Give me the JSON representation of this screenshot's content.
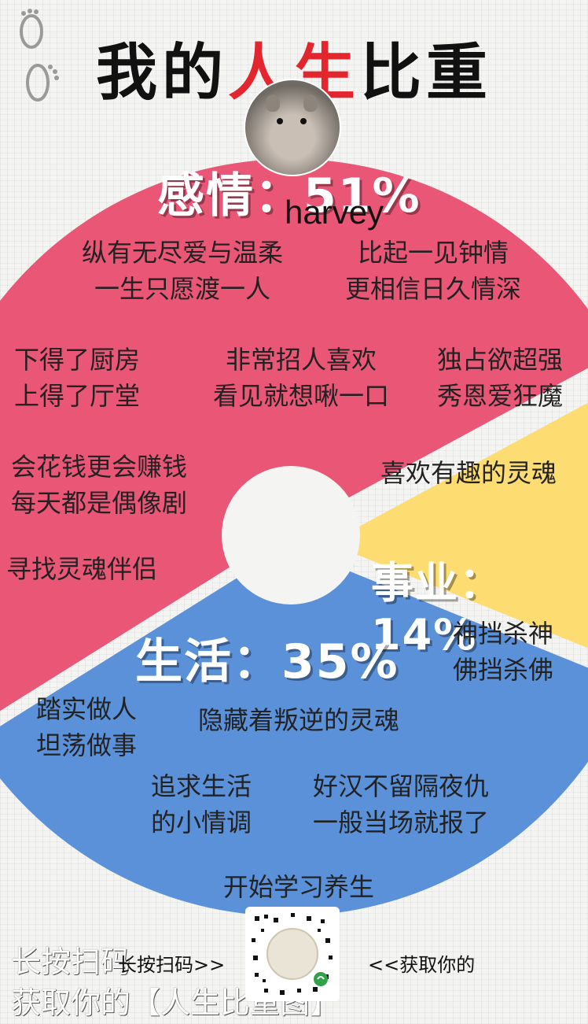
{
  "title": {
    "part1": "我的",
    "part2": "人生",
    "part3": "比重"
  },
  "profile": {
    "name": "harvey"
  },
  "sections": {
    "emotion": {
      "label": "感情：51%",
      "percent": 51,
      "color": "#ea5676",
      "phrases": [
        {
          "line1": "纵有无尽爱与温柔",
          "line2": "一生只愿渡一人"
        },
        {
          "line1": "比起一见钟情",
          "line2": "更相信日久情深"
        },
        {
          "line1": "下得了厨房",
          "line2": "上得了厅堂"
        },
        {
          "line1": "非常招人喜欢",
          "line2": "看见就想啾一口"
        },
        {
          "line1": "独占欲超强",
          "line2": "秀恩爱狂魔"
        },
        {
          "line1": "会花钱更会赚钱",
          "line2": "每天都是偶像剧"
        },
        {
          "line1": "喜欢有趣的灵魂",
          "line2": ""
        },
        {
          "line1": "寻找灵魂伴侣",
          "line2": ""
        }
      ]
    },
    "career": {
      "label": "事业：14%",
      "percent": 14,
      "color": "#fddc72",
      "phrases": [
        {
          "line1": "神挡杀神",
          "line2": "佛挡杀佛"
        }
      ]
    },
    "life": {
      "label": "生活：35%",
      "percent": 35,
      "color": "#5b91d9",
      "phrases": [
        {
          "line1": "踏实做人",
          "line2": "坦荡做事"
        },
        {
          "line1": "隐藏着叛逆的灵魂",
          "line2": ""
        },
        {
          "line1": "追求生活",
          "line2": "的小情调"
        },
        {
          "line1": "好汉不留隔夜仇",
          "line2": "一般当场就报了"
        },
        {
          "line1": "开始学习养生",
          "line2": ""
        }
      ]
    }
  },
  "footer": {
    "line1": "长按扫码",
    "line2": "获取你的【人生比重图】",
    "scan_left": "长按扫码>>",
    "scan_right": "<<获取你的"
  },
  "colors": {
    "background": "#f4f4f2",
    "title_red": "#e3262d",
    "title_black": "#111111"
  },
  "icons": [
    "footprints-icon",
    "qr-code-icon",
    "mini-program-icon"
  ]
}
